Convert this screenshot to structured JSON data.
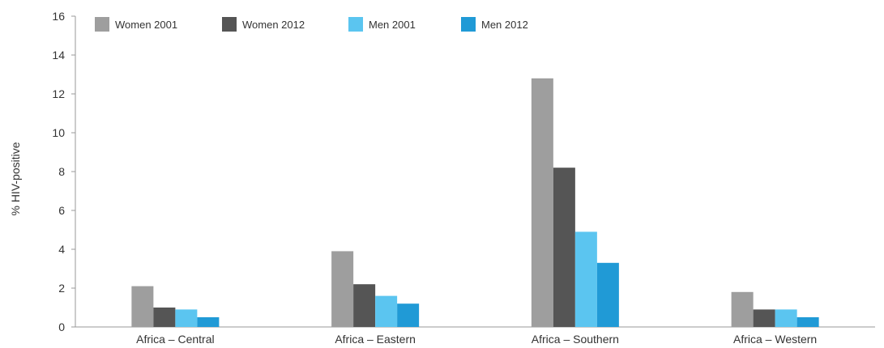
{
  "chart_data": {
    "type": "bar",
    "title": "",
    "xlabel": "",
    "ylabel": "% HIV-positive",
    "ylim": [
      0,
      16
    ],
    "yticks": [
      0,
      2,
      4,
      6,
      8,
      10,
      12,
      14,
      16
    ],
    "grid": false,
    "legend_position": "top-left",
    "categories": [
      "Africa – Central",
      "Africa – Eastern",
      "Africa – Southern",
      "Africa – Western"
    ],
    "series": [
      {
        "name": "Women 2001",
        "color": "#9e9e9e",
        "values": [
          2.1,
          3.9,
          12.8,
          1.8
        ]
      },
      {
        "name": "Women 2012",
        "color": "#555555",
        "values": [
          1.0,
          2.2,
          8.2,
          0.9
        ]
      },
      {
        "name": "Men 2001",
        "color": "#5bc5f0",
        "values": [
          0.9,
          1.6,
          4.9,
          0.9
        ]
      },
      {
        "name": "Men 2012",
        "color": "#209ad6",
        "values": [
          0.5,
          1.2,
          3.3,
          0.5
        ]
      }
    ]
  }
}
